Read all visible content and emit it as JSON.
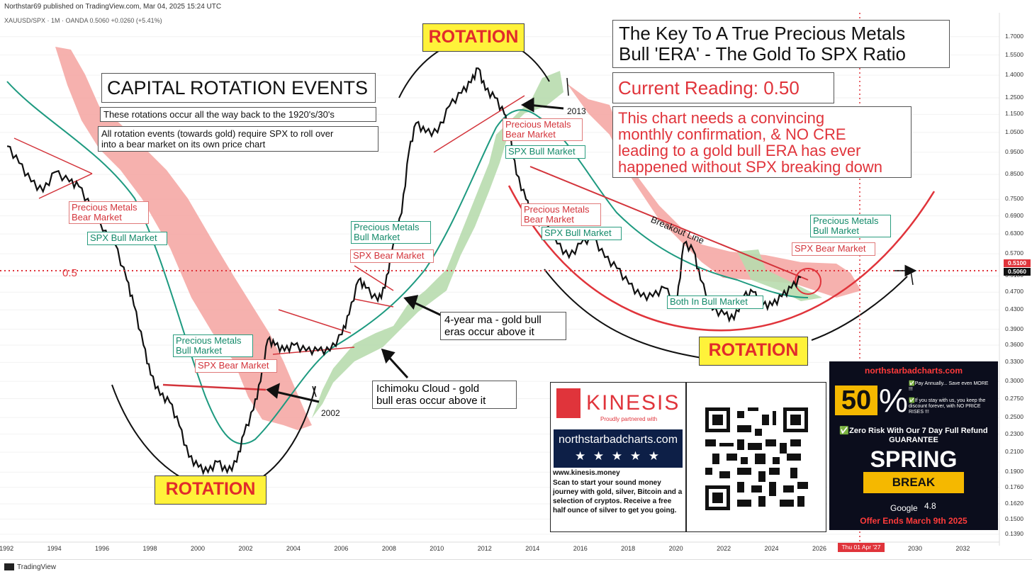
{
  "header": {
    "published": "Northstar69 published on TradingView.com, Mar 04, 2025 15:24 UTC",
    "symbol_line": "XAUUSD/SPX · 1M · OANDA  0.5060  +0.0260 (+5.41%)",
    "footer_brand": "TradingView"
  },
  "title_box": {
    "line1": "The Key To A True Precious Metals",
    "line2": "Bull 'ERA' - The Gold To SPX Ratio"
  },
  "current_reading": "Current Reading: 0.50",
  "note_box": "This chart needs a convincing\nmonthly confirmation, & NO CRE\nleading to a gold bull ERA has ever\nhappened without SPX breaking down",
  "cap_rotation": {
    "title": "CAPITAL ROTATION EVENTS",
    "line1": "These rotations occur all the way back to the 1920's/30's",
    "line2": "All rotation events (towards gold) require SPX to roll over\ninto a bear market on its own price chart"
  },
  "rotation_label": "ROTATION",
  "labels": {
    "pm_bear_1": "Precious Metals\nBear Market",
    "spx_bull_1": "SPX Bull Market",
    "pm_bull_1": "Precious Metals\nBull Market",
    "spx_bear_1": "SPX Bear Market",
    "pm_bull_2": "Precious Metals\nBull Market",
    "spx_bear_2": "SPX Bear Market",
    "pm_bear_2": "Precious Metals\nBear Market",
    "spx_bull_2": "SPX Bull Market",
    "pm_bear_3": "Precious Metals\nBear Market",
    "spx_bull_3": "SPX Bull Market",
    "both_bull": "Both In Bull Market",
    "pm_bull_3": "Precious Metals\nBull Market",
    "spx_bear_3": "SPX Bear Market",
    "ma_note": "4-year ma - gold bull\neras occur above it",
    "cloud_note": "Ichimoku Cloud - gold\nbull eras occur above it",
    "y2013": "2013",
    "y2002": "2002",
    "breakout": "Breakout Line",
    "level": "0.5"
  },
  "kinesis": {
    "brand": "KINESIS",
    "partner": "Proudly partnered with",
    "site": "northstarbadcharts.com",
    "stars": "★ ★ ★ ★ ★",
    "url": "www.kinesis.money",
    "text": "Scan to start your sound money journey with gold, silver, Bitcoin and a selection of cryptos. Receive a free half ounce of silver to get you going."
  },
  "ad": {
    "site": "northstarbadcharts.com",
    "pct": "50",
    "pct_sign": "%",
    "small1": "✅Pay Annually... Save even MORE !!!",
    "small2": "✅If you stay with us, you keep the discount forever, with NO PRICE RISES !!!",
    "guarantee": "✅Zero Risk With Our 7 Day Full Refund GUARANTEE",
    "spring": "SPRING",
    "break": "BREAK",
    "google": "Google",
    "rating": "4.8",
    "offer": "Offer Ends March 9th 2025"
  },
  "cursor_date": "Thu 01 Apr '27",
  "colors": {
    "red": "#e0343b",
    "green": "#148a6a",
    "cloud_red": "#f4a3a0",
    "cloud_green": "#b8dcae",
    "ma": "#1e9a80",
    "ad_bg": "#0b0d1c"
  },
  "chart_data": {
    "type": "line",
    "title": "The Key To A True Precious Metals Bull 'ERA' - The Gold To SPX Ratio",
    "symbol": "XAUUSD/SPX",
    "interval": "1M",
    "log_scale": true,
    "xlim": [
      1991.7,
      2033.5
    ],
    "ylim": [
      0.136,
      1.85
    ],
    "x_ticks": [
      1992,
      1994,
      1996,
      1998,
      2000,
      2002,
      2004,
      2006,
      2008,
      2010,
      2012,
      2014,
      2016,
      2018,
      2020,
      2022,
      2024,
      2026,
      2028,
      2030,
      2032
    ],
    "y_ticks": [
      1.7,
      1.55,
      1.4,
      1.25,
      1.15,
      1.05,
      0.95,
      0.85,
      0.75,
      0.69,
      0.63,
      0.57,
      0.51,
      0.47,
      0.43,
      0.39,
      0.36,
      0.33,
      0.3,
      0.275,
      0.25,
      0.23,
      0.21,
      0.19,
      0.176,
      0.162,
      0.15,
      0.139
    ],
    "y_tick_labels": [
      "1.7000",
      "1.5500",
      "1.4000",
      "1.2500",
      "1.1500",
      "1.0500",
      "0.9500",
      "0.8500",
      "0.7500",
      "0.6900",
      "0.6300",
      "0.5700",
      "0.5100",
      "0.4700",
      "0.4300",
      "0.3900",
      "0.3600",
      "0.3300",
      "0.3000",
      "0.2750",
      "0.2500",
      "0.2300",
      "0.2100",
      "0.1900",
      "0.1760",
      "0.1620",
      "0.1500",
      "0.1390"
    ],
    "last_price": 0.506,
    "last_price_label": "0.5060",
    "level_price_label": "0.5100",
    "series": [
      {
        "name": "XAUUSD/SPX",
        "points": [
          [
            1992.0,
            0.98
          ],
          [
            1992.5,
            0.9
          ],
          [
            1993.0,
            0.82
          ],
          [
            1993.5,
            0.78
          ],
          [
            1994.0,
            0.86
          ],
          [
            1994.6,
            0.82
          ],
          [
            1995.0,
            0.8
          ],
          [
            1995.5,
            0.72
          ],
          [
            1996.0,
            0.64
          ],
          [
            1996.5,
            0.6
          ],
          [
            1997.0,
            0.5
          ],
          [
            1997.3,
            0.44
          ],
          [
            1997.7,
            0.36
          ],
          [
            1998.0,
            0.31
          ],
          [
            1998.4,
            0.28
          ],
          [
            1998.8,
            0.27
          ],
          [
            1999.2,
            0.24
          ],
          [
            1999.6,
            0.205
          ],
          [
            2000.0,
            0.195
          ],
          [
            2000.4,
            0.19
          ],
          [
            2000.8,
            0.2
          ],
          [
            2001.2,
            0.19
          ],
          [
            2001.6,
            0.2
          ],
          [
            2001.9,
            0.23
          ],
          [
            2002.3,
            0.26
          ],
          [
            2002.6,
            0.3
          ],
          [
            2002.9,
            0.37
          ],
          [
            2003.2,
            0.36
          ],
          [
            2003.6,
            0.35
          ],
          [
            2004.0,
            0.36
          ],
          [
            2004.5,
            0.35
          ],
          [
            2005.0,
            0.35
          ],
          [
            2005.5,
            0.35
          ],
          [
            2006.0,
            0.38
          ],
          [
            2006.3,
            0.42
          ],
          [
            2006.7,
            0.5
          ],
          [
            2007.0,
            0.48
          ],
          [
            2007.5,
            0.45
          ],
          [
            2007.8,
            0.48
          ],
          [
            2008.1,
            0.58
          ],
          [
            2008.5,
            0.7
          ],
          [
            2008.8,
            0.95
          ],
          [
            2009.1,
            1.1
          ],
          [
            2009.5,
            1.05
          ],
          [
            2010.0,
            1.05
          ],
          [
            2010.5,
            1.2
          ],
          [
            2011.0,
            1.28
          ],
          [
            2011.4,
            1.35
          ],
          [
            2011.7,
            1.45
          ],
          [
            2012.0,
            1.3
          ],
          [
            2012.4,
            1.25
          ],
          [
            2012.8,
            1.15
          ],
          [
            2013.0,
            1.05
          ],
          [
            2013.3,
            0.85
          ],
          [
            2013.7,
            0.75
          ],
          [
            2014.0,
            0.68
          ],
          [
            2014.5,
            0.66
          ],
          [
            2015.0,
            0.6
          ],
          [
            2015.5,
            0.56
          ],
          [
            2016.0,
            0.6
          ],
          [
            2016.5,
            0.62
          ],
          [
            2017.0,
            0.56
          ],
          [
            2017.5,
            0.53
          ],
          [
            2018.0,
            0.49
          ],
          [
            2018.5,
            0.46
          ],
          [
            2019.0,
            0.46
          ],
          [
            2019.5,
            0.48
          ],
          [
            2020.0,
            0.44
          ],
          [
            2020.3,
            0.6
          ],
          [
            2020.7,
            0.58
          ],
          [
            2021.0,
            0.5
          ],
          [
            2021.5,
            0.43
          ],
          [
            2022.0,
            0.42
          ],
          [
            2022.4,
            0.41
          ],
          [
            2022.8,
            0.46
          ],
          [
            2023.2,
            0.47
          ],
          [
            2023.6,
            0.44
          ],
          [
            2024.0,
            0.44
          ],
          [
            2024.4,
            0.46
          ],
          [
            2024.8,
            0.48
          ],
          [
            2025.2,
            0.506
          ]
        ]
      }
    ]
  }
}
